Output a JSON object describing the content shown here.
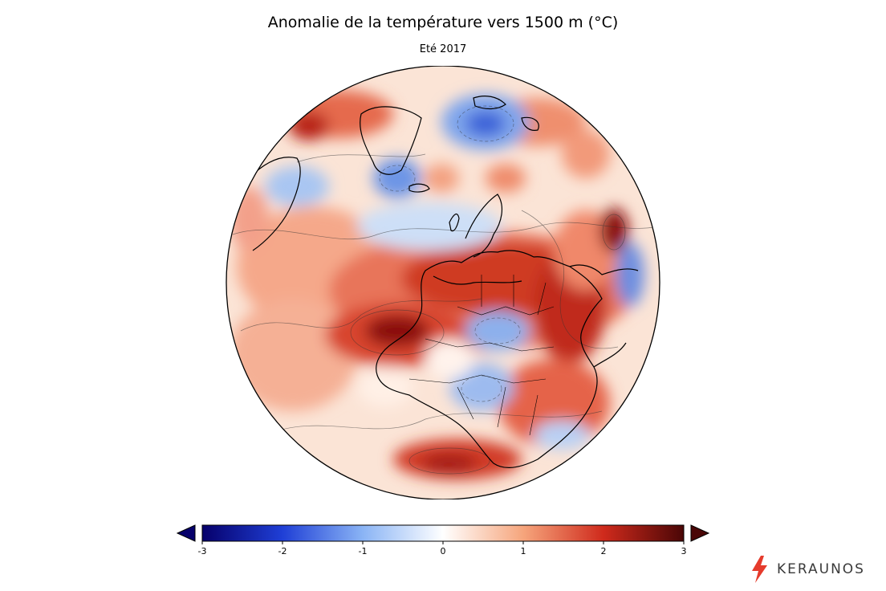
{
  "header": {
    "title": "Anomalie de la température vers 1500 m (°C)",
    "subtitle": "Eté 2017"
  },
  "map": {
    "projection": "orthographic",
    "variable": "Anomalie de la température vers 1500 m",
    "unit": "°C",
    "region": "Europe, Afrique, Atlantique Nord"
  },
  "colorbar": {
    "min": -3,
    "max": 3,
    "ticks": [
      "-3",
      "-2",
      "-1",
      "0",
      "1",
      "2",
      "3"
    ],
    "colors": {
      "minus3": "#06006b",
      "minus2": "#1f3fd6",
      "minus1": "#8ab4f5",
      "zero": "#ffffff",
      "plus1": "#f6a57c",
      "plus2": "#cf2a1c",
      "plus3": "#4a0606"
    },
    "extend": "both"
  },
  "logo": {
    "text": "KERAUNOS",
    "icon": "lightning-bolt-icon",
    "accent": "#e53b2c"
  }
}
